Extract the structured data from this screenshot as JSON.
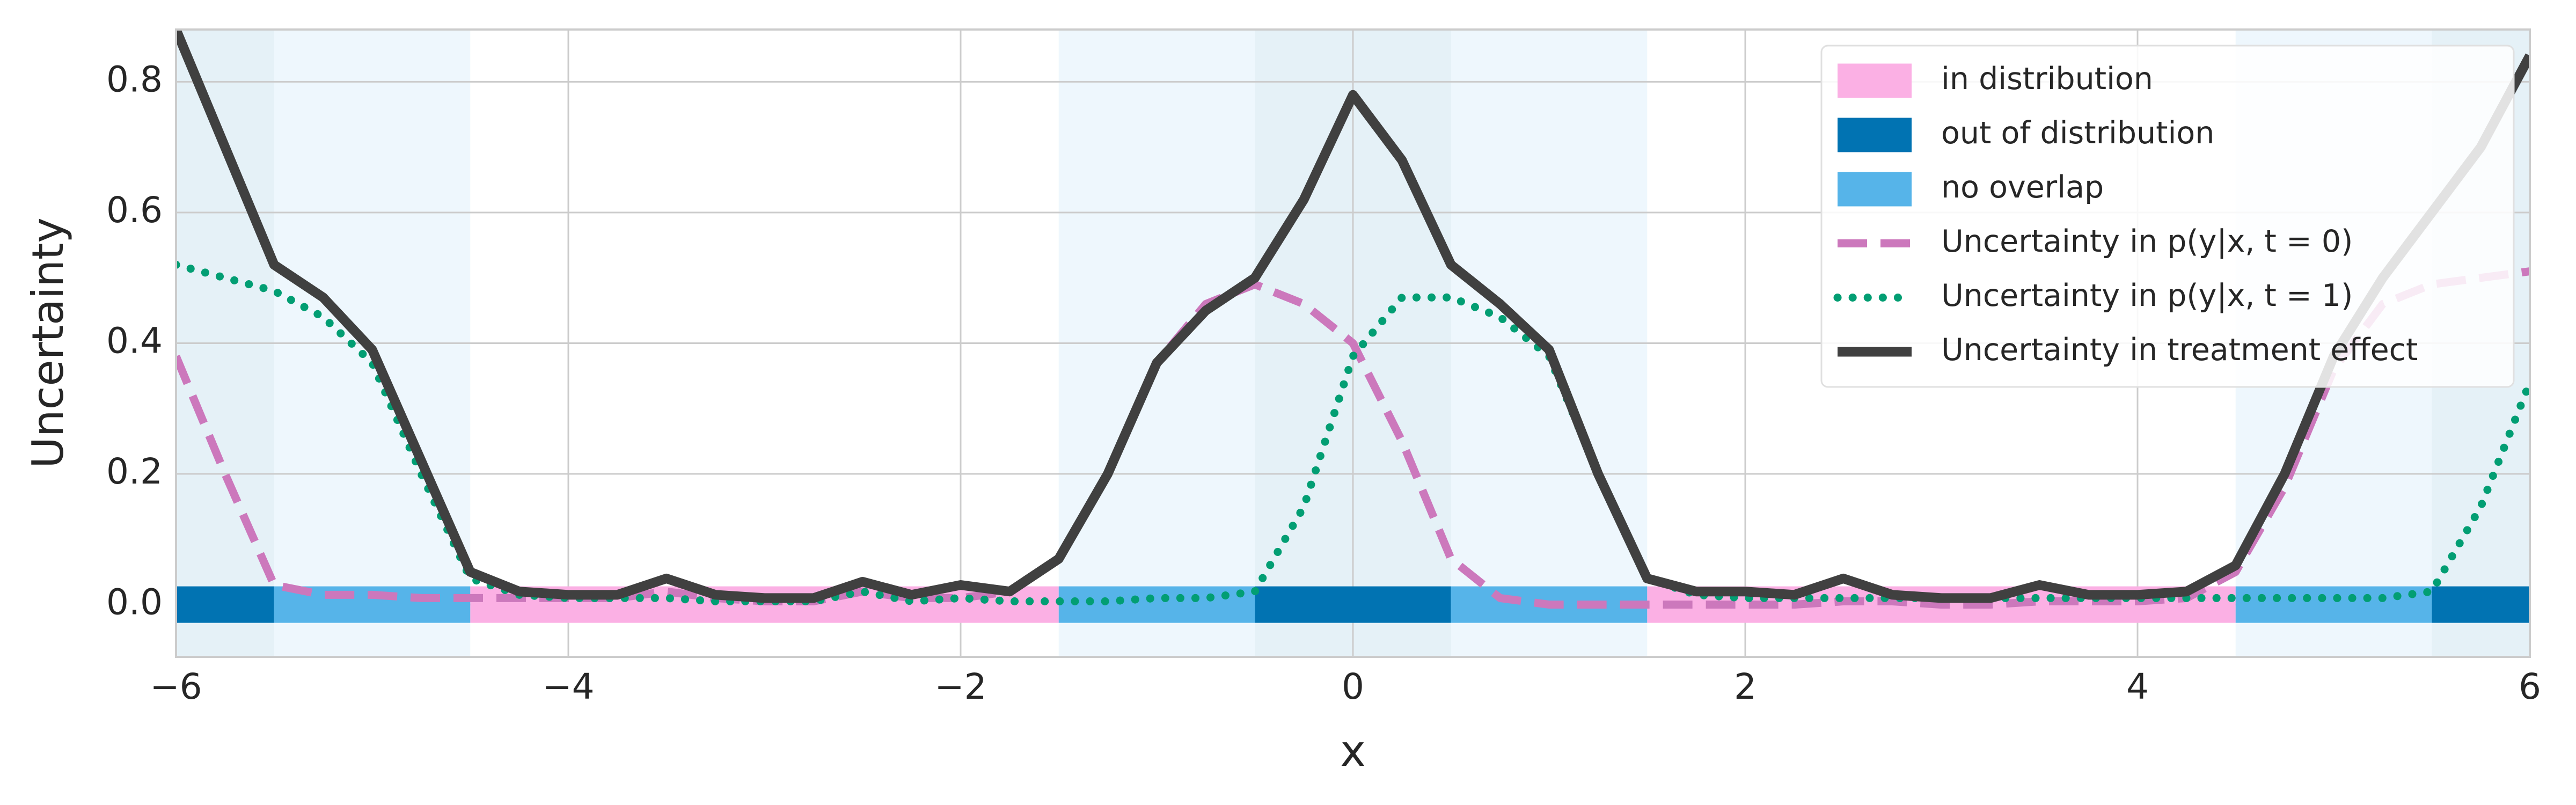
{
  "chart_data": {
    "type": "line",
    "xlabel": "x",
    "ylabel": "Uncertainty",
    "xlim": [
      -6,
      6
    ],
    "ylim": [
      -0.08,
      0.88
    ],
    "xticks": [
      {
        "value": -6,
        "label": "−6"
      },
      {
        "value": -4,
        "label": "−4"
      },
      {
        "value": -2,
        "label": "−2"
      },
      0,
      2,
      4,
      6
    ],
    "yticks": [
      {
        "value": 0,
        "label": "0.0"
      },
      0.2,
      0.4,
      0.6,
      0.8
    ],
    "grid": true,
    "legend": "upper right",
    "regions": [
      {
        "name": "in distribution",
        "color": "#fbb0e4",
        "shaded": false,
        "intervals": [
          [
            -4.5,
            -1.5
          ],
          [
            1.5,
            4.5
          ]
        ]
      },
      {
        "name": "out of distribution",
        "color": "#0173b2",
        "shaded": true,
        "intervals": [
          [
            -6,
            -5.5
          ],
          [
            -0.5,
            0.5
          ],
          [
            5.5,
            6
          ]
        ]
      },
      {
        "name": "no overlap",
        "color": "#56b4e9",
        "shaded": true,
        "intervals": [
          [
            -5.5,
            -4.5
          ],
          [
            -1.5,
            -0.5
          ],
          [
            0.5,
            1.5
          ],
          [
            4.5,
            5.5
          ]
        ]
      }
    ],
    "x": [
      -6,
      -5.75,
      -5.5,
      -5.25,
      -5,
      -4.75,
      -4.5,
      -4.25,
      -4,
      -3.75,
      -3.5,
      -3.25,
      -3,
      -2.75,
      -2.5,
      -2.25,
      -2,
      -1.75,
      -1.5,
      -1.25,
      -1,
      -0.75,
      -0.5,
      -0.25,
      0,
      0.25,
      0.5,
      0.75,
      1,
      1.25,
      1.5,
      1.75,
      2,
      2.25,
      2.5,
      2.75,
      3,
      3.25,
      3.5,
      3.75,
      4,
      4.25,
      4.5,
      4.75,
      5,
      5.25,
      5.5,
      5.75,
      6
    ],
    "series": [
      {
        "name": "Uncertainty in p(y|x, t = 0)",
        "color": "#cc78bc",
        "style": "dashed",
        "values": [
          0.38,
          0.2,
          0.03,
          0.015,
          0.015,
          0.01,
          0.01,
          0.01,
          0.01,
          0.01,
          0.02,
          0.01,
          0.005,
          0.005,
          0.02,
          0.01,
          0.01,
          0.02,
          0.07,
          0.2,
          0.37,
          0.46,
          0.49,
          0.46,
          0.4,
          0.25,
          0.07,
          0.01,
          0,
          0,
          0,
          0,
          0,
          0,
          0.005,
          0.005,
          0,
          0,
          0.005,
          0.005,
          0.005,
          0.01,
          0.05,
          0.18,
          0.36,
          0.46,
          0.49,
          0.5,
          0.51
        ]
      },
      {
        "name": "Uncertainty in p(y|x, t = 1)",
        "color": "#029e73",
        "style": "dotted",
        "values": [
          0.52,
          0.5,
          0.48,
          0.44,
          0.37,
          0.2,
          0.04,
          0.015,
          0.01,
          0.01,
          0.01,
          0.005,
          0.005,
          0.005,
          0.02,
          0.005,
          0.01,
          0.005,
          0.005,
          0.005,
          0.01,
          0.01,
          0.02,
          0.15,
          0.38,
          0.47,
          0.47,
          0.44,
          0.38,
          0.2,
          0.04,
          0.015,
          0.01,
          0.01,
          0.01,
          0.01,
          0.01,
          0.01,
          0.01,
          0.01,
          0.01,
          0.01,
          0.01,
          0.01,
          0.01,
          0.01,
          0.02,
          0.15,
          0.34
        ]
      },
      {
        "name": "Uncertainty in treatment effect",
        "color": "#404040",
        "style": "solid",
        "values": [
          0.88,
          0.7,
          0.52,
          0.47,
          0.39,
          0.22,
          0.05,
          0.02,
          0.015,
          0.015,
          0.04,
          0.015,
          0.01,
          0.01,
          0.035,
          0.015,
          0.03,
          0.02,
          0.07,
          0.2,
          0.37,
          0.45,
          0.5,
          0.62,
          0.78,
          0.68,
          0.52,
          0.46,
          0.39,
          0.2,
          0.04,
          0.02,
          0.02,
          0.015,
          0.04,
          0.015,
          0.01,
          0.01,
          0.03,
          0.015,
          0.015,
          0.02,
          0.06,
          0.2,
          0.38,
          0.5,
          0.6,
          0.7,
          0.84
        ]
      }
    ]
  }
}
